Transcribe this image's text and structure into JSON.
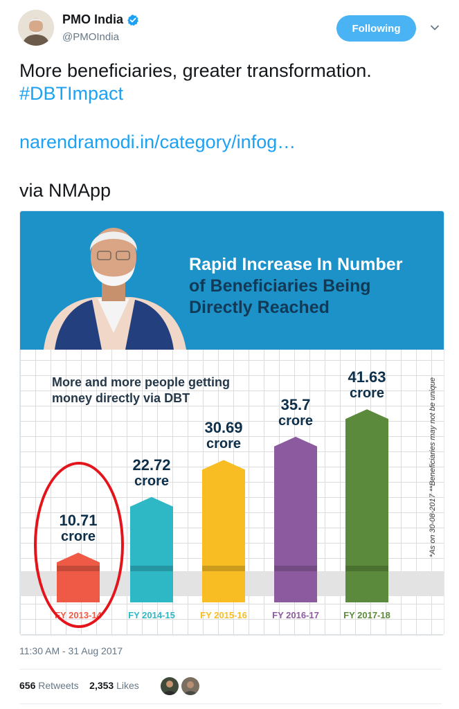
{
  "header": {
    "display_name": "PMO India",
    "handle": "@PMOIndia",
    "follow_label": "Following",
    "avatar_icon": "user-avatar",
    "verified_icon": "verified-badge-icon",
    "menu_icon": "chevron-down-icon"
  },
  "tweet": {
    "line1": "More beneficiaries, greater transformation.",
    "hashtag": "#DBTImpact",
    "link": "narendramodi.in/category/infog…",
    "via": "via NMApp"
  },
  "infographic": {
    "headline_line1": "Rapid Increase In Number",
    "headline_line2": "of Beneficiaries  Being",
    "headline_line3": "Directly Reached",
    "subtitle_line1": "More and more people getting",
    "subtitle_line2": "money directly via DBT",
    "footnote": "*As on 30-08-2017   **Beneficiaries may not be unique",
    "banner_color": "#1d92c8",
    "highlight_color": "#e4141c"
  },
  "chart_data": {
    "type": "bar",
    "title": "Rapid Increase In Number of Beneficiaries Being Directly Reached",
    "subtitle": "More and more people getting money directly via DBT",
    "categories": [
      "FY 2013-14",
      "FY 2014-15",
      "FY 2015-16",
      "FY 2016-17",
      "FY 2017-18"
    ],
    "values": [
      10.71,
      22.72,
      30.69,
      35.7,
      41.63
    ],
    "value_labels": [
      "10.71",
      "22.72",
      "30.69",
      "35.7",
      "41.63"
    ],
    "unit": "crore",
    "colors": [
      "#ee5a45",
      "#2eb8c6",
      "#f7bd23",
      "#8c5a9e",
      "#5b8a3c"
    ],
    "ylim": [
      0,
      45
    ],
    "highlighted_category": "FY 2013-14",
    "grid": true
  },
  "footer": {
    "timestamp": "11:30 AM - 31 Aug 2017",
    "retweets_count": "656",
    "retweets_label": "Retweets",
    "likes_count": "2,353",
    "likes_label": "Likes"
  }
}
